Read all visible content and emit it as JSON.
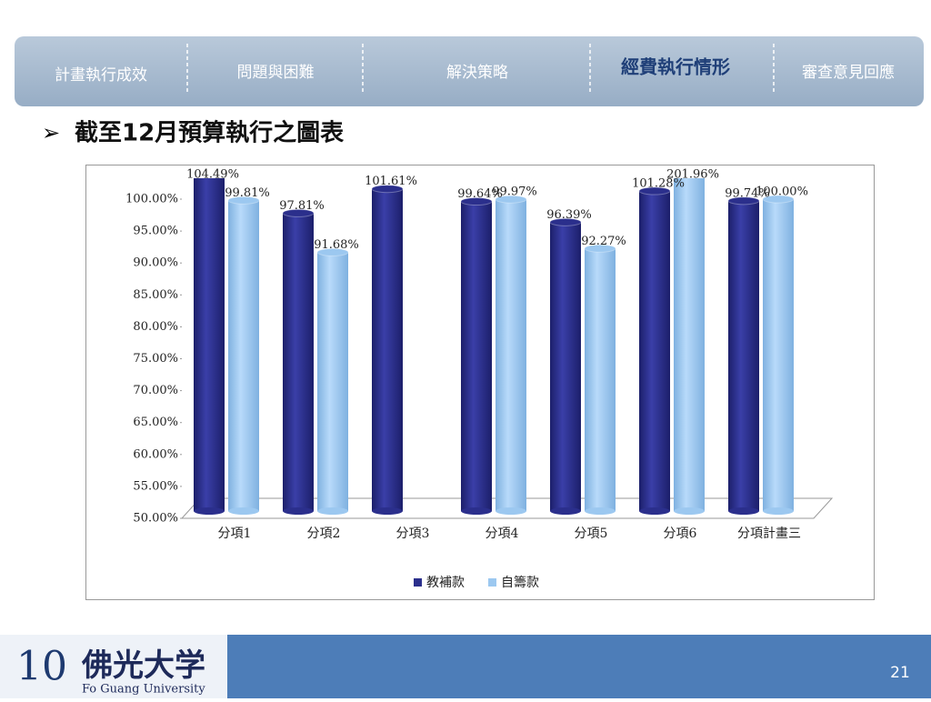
{
  "nav": [
    "計畫執行成效",
    "問題與困難",
    "解決策略",
    "經費執行情形",
    "審查意見回應"
  ],
  "slide_title": "截至12月預算執行之圖表",
  "chart_data": {
    "type": "bar",
    "categories": [
      "分項1",
      "分項2",
      "分項3",
      "分項4",
      "分項5",
      "分項6",
      "分項計畫三"
    ],
    "series": [
      {
        "name": "教補款",
        "color": "#2b2f8c",
        "values": [
          104.49,
          97.81,
          101.61,
          99.64,
          96.39,
          101.28,
          99.74
        ],
        "value_labels": [
          "104.49%",
          "97.81%",
          "101.61%",
          "99.64%",
          "96.39%",
          "101.28%",
          "99.74%"
        ]
      },
      {
        "name": "自籌款",
        "color": "#9cc8f0",
        "values": [
          99.81,
          91.68,
          null,
          99.97,
          92.27,
          201.96,
          100.0
        ],
        "value_labels": [
          "99.81%",
          "91.68%",
          null,
          "99.97%",
          "92.27%",
          "201.96%",
          "100.00%"
        ]
      }
    ],
    "ylim": [
      50,
      100
    ],
    "yticks": [
      {
        "value": 50,
        "label": "50.00%"
      },
      {
        "value": 55,
        "label": "55.00%"
      },
      {
        "value": 60,
        "label": "60.00%"
      },
      {
        "value": 65,
        "label": "65.00%"
      },
      {
        "value": 70,
        "label": "70.00%"
      },
      {
        "value": 75,
        "label": "75.00%"
      },
      {
        "value": 80,
        "label": "80.00%"
      },
      {
        "value": 85,
        "label": "85.00%"
      },
      {
        "value": 90,
        "label": "90.00%"
      },
      {
        "value": 95,
        "label": "95.00%"
      },
      {
        "value": 100,
        "label": "100.00%"
      }
    ],
    "legend": "bottom"
  },
  "footer": {
    "logo_number": "10",
    "logo_text": "佛光大学",
    "logo_subtitle": "Fo Guang University",
    "page_number": "21"
  }
}
